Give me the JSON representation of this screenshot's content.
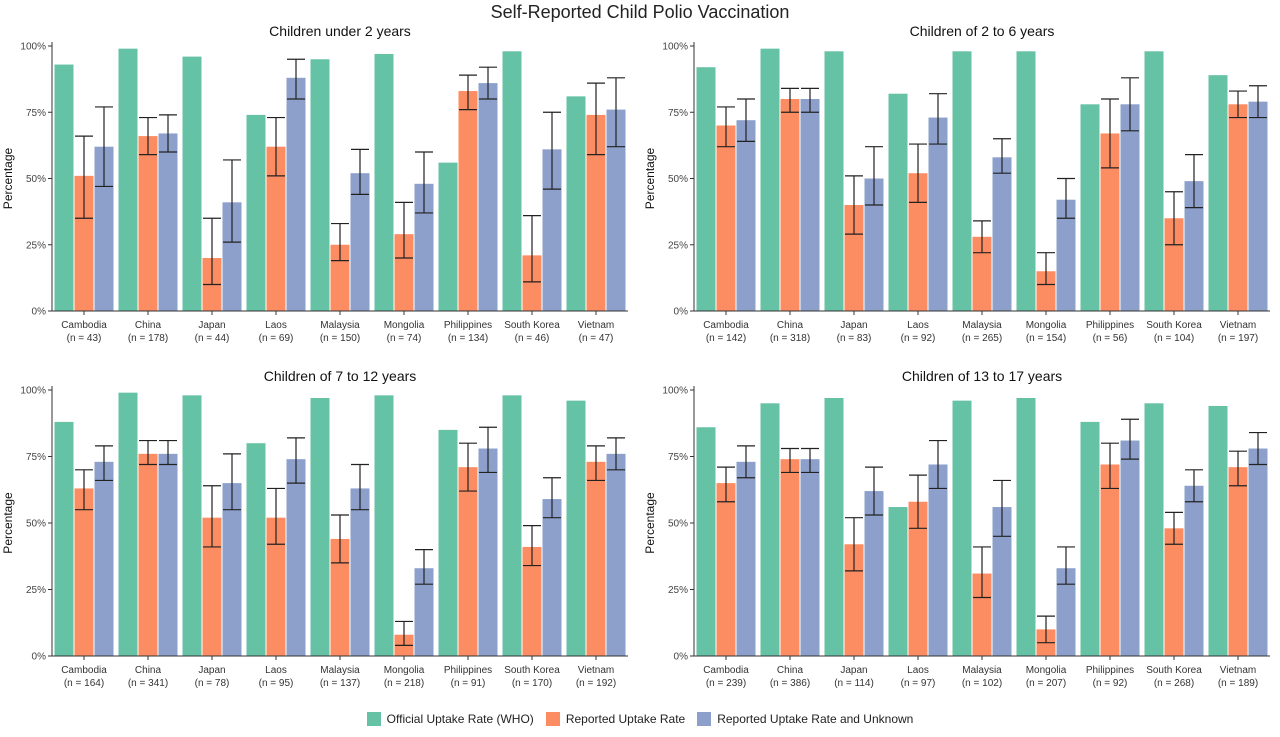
{
  "page_title": "Self-Reported Child Polio Vaccination",
  "colors": {
    "official": "#66c2a5",
    "reported": "#fc8d62",
    "reported_unknown": "#8da0cb",
    "axis": "#333333",
    "error_bar": "#222222"
  },
  "legend": [
    {
      "label": "Official Uptake Rate (WHO)",
      "color": "#66c2a5"
    },
    {
      "label": "Reported Uptake Rate",
      "color": "#fc8d62"
    },
    {
      "label": "Reported Uptake Rate and Unknown",
      "color": "#8da0cb"
    }
  ],
  "chart_data": [
    {
      "type": "bar",
      "title": "Children under 2 years",
      "ylabel": "Percentage",
      "ylim": [
        0,
        100
      ],
      "yticks": [
        "0%",
        "25%",
        "50%",
        "75%",
        "100%"
      ],
      "categories": [
        "Cambodia",
        "China",
        "Japan",
        "Laos",
        "Malaysia",
        "Mongolia",
        "Philippines",
        "South Korea",
        "Vietnam"
      ],
      "category_n": [
        "(n = 43)",
        "(n = 178)",
        "(n = 44)",
        "(n = 69)",
        "(n = 150)",
        "(n = 74)",
        "(n = 134)",
        "(n = 46)",
        "(n = 47)"
      ],
      "series": [
        {
          "name": "Official Uptake Rate (WHO)",
          "values": [
            93,
            99,
            96,
            74,
            95,
            97,
            56,
            98,
            81
          ]
        },
        {
          "name": "Reported Uptake Rate",
          "values": [
            51,
            66,
            20,
            62,
            25,
            29,
            83,
            21,
            74
          ],
          "error": [
            [
              35,
              66
            ],
            [
              59,
              73
            ],
            [
              10,
              35
            ],
            [
              51,
              73
            ],
            [
              19,
              33
            ],
            [
              20,
              41
            ],
            [
              76,
              89
            ],
            [
              11,
              36
            ],
            [
              59,
              86
            ]
          ]
        },
        {
          "name": "Reported Uptake Rate and Unknown",
          "values": [
            62,
            67,
            41,
            88,
            52,
            48,
            86,
            61,
            76
          ],
          "error": [
            [
              47,
              77
            ],
            [
              60,
              74
            ],
            [
              26,
              57
            ],
            [
              80,
              95
            ],
            [
              44,
              61
            ],
            [
              37,
              60
            ],
            [
              80,
              92
            ],
            [
              46,
              75
            ],
            [
              62,
              88
            ]
          ]
        }
      ]
    },
    {
      "type": "bar",
      "title": "Children of 2 to 6 years",
      "ylabel": "Percentage",
      "ylim": [
        0,
        100
      ],
      "yticks": [
        "0%",
        "25%",
        "50%",
        "75%",
        "100%"
      ],
      "categories": [
        "Cambodia",
        "China",
        "Japan",
        "Laos",
        "Malaysia",
        "Mongolia",
        "Philippines",
        "South Korea",
        "Vietnam"
      ],
      "category_n": [
        "(n = 142)",
        "(n = 318)",
        "(n = 83)",
        "(n = 92)",
        "(n = 265)",
        "(n = 154)",
        "(n = 56)",
        "(n = 104)",
        "(n = 197)"
      ],
      "series": [
        {
          "name": "Official Uptake Rate (WHO)",
          "values": [
            92,
            99,
            98,
            82,
            98,
            98,
            78,
            98,
            89
          ]
        },
        {
          "name": "Reported Uptake Rate",
          "values": [
            70,
            80,
            40,
            52,
            28,
            15,
            67,
            35,
            78
          ],
          "error": [
            [
              62,
              77
            ],
            [
              75,
              84
            ],
            [
              29,
              51
            ],
            [
              41,
              63
            ],
            [
              22,
              34
            ],
            [
              10,
              22
            ],
            [
              54,
              80
            ],
            [
              25,
              45
            ],
            [
              73,
              83
            ]
          ]
        },
        {
          "name": "Reported Uptake Rate and Unknown",
          "values": [
            72,
            80,
            50,
            73,
            58,
            42,
            78,
            49,
            79
          ],
          "error": [
            [
              64,
              80
            ],
            [
              75,
              84
            ],
            [
              40,
              62
            ],
            [
              63,
              82
            ],
            [
              52,
              65
            ],
            [
              35,
              50
            ],
            [
              68,
              88
            ],
            [
              39,
              59
            ],
            [
              73,
              85
            ]
          ]
        }
      ]
    },
    {
      "type": "bar",
      "title": "Children of 7 to 12 years",
      "ylabel": "Percentage",
      "ylim": [
        0,
        100
      ],
      "yticks": [
        "0%",
        "25%",
        "50%",
        "75%",
        "100%"
      ],
      "categories": [
        "Cambodia",
        "China",
        "Japan",
        "Laos",
        "Malaysia",
        "Mongolia",
        "Philippines",
        "South Korea",
        "Vietnam"
      ],
      "category_n": [
        "(n = 164)",
        "(n = 341)",
        "(n = 78)",
        "(n = 95)",
        "(n = 137)",
        "(n = 218)",
        "(n = 91)",
        "(n = 170)",
        "(n = 192)"
      ],
      "series": [
        {
          "name": "Official Uptake Rate (WHO)",
          "values": [
            88,
            99,
            98,
            80,
            97,
            98,
            85,
            98,
            96
          ]
        },
        {
          "name": "Reported Uptake Rate",
          "values": [
            63,
            76,
            52,
            52,
            44,
            8,
            71,
            41,
            73
          ],
          "error": [
            [
              55,
              70
            ],
            [
              72,
              81
            ],
            [
              41,
              64
            ],
            [
              42,
              63
            ],
            [
              35,
              53
            ],
            [
              4,
              13
            ],
            [
              62,
              80
            ],
            [
              34,
              49
            ],
            [
              66,
              79
            ]
          ]
        },
        {
          "name": "Reported Uptake Rate and Unknown",
          "values": [
            73,
            76,
            65,
            74,
            63,
            33,
            78,
            59,
            76
          ],
          "error": [
            [
              66,
              79
            ],
            [
              72,
              81
            ],
            [
              55,
              76
            ],
            [
              65,
              82
            ],
            [
              55,
              72
            ],
            [
              27,
              40
            ],
            [
              69,
              86
            ],
            [
              52,
              67
            ],
            [
              70,
              82
            ]
          ]
        }
      ]
    },
    {
      "type": "bar",
      "title": "Children of 13 to 17 years",
      "ylabel": "Percentage",
      "ylim": [
        0,
        100
      ],
      "yticks": [
        "0%",
        "25%",
        "50%",
        "75%",
        "100%"
      ],
      "categories": [
        "Cambodia",
        "China",
        "Japan",
        "Laos",
        "Malaysia",
        "Mongolia",
        "Philippines",
        "South Korea",
        "Vietnam"
      ],
      "category_n": [
        "(n = 239)",
        "(n = 386)",
        "(n = 114)",
        "(n = 97)",
        "(n = 102)",
        "(n = 207)",
        "(n = 92)",
        "(n = 268)",
        "(n = 189)"
      ],
      "series": [
        {
          "name": "Official Uptake Rate (WHO)",
          "values": [
            86,
            95,
            97,
            56,
            96,
            97,
            88,
            95,
            94
          ]
        },
        {
          "name": "Reported Uptake Rate",
          "values": [
            65,
            74,
            42,
            58,
            31,
            10,
            72,
            48,
            71
          ],
          "error": [
            [
              58,
              71
            ],
            [
              69,
              78
            ],
            [
              32,
              52
            ],
            [
              48,
              68
            ],
            [
              22,
              41
            ],
            [
              5,
              15
            ],
            [
              63,
              80
            ],
            [
              42,
              54
            ],
            [
              64,
              77
            ]
          ]
        },
        {
          "name": "Reported Uptake Rate and Unknown",
          "values": [
            73,
            74,
            62,
            72,
            56,
            33,
            81,
            64,
            78
          ],
          "error": [
            [
              67,
              79
            ],
            [
              69,
              78
            ],
            [
              53,
              71
            ],
            [
              63,
              81
            ],
            [
              45,
              66
            ],
            [
              27,
              41
            ],
            [
              74,
              89
            ],
            [
              58,
              70
            ],
            [
              72,
              84
            ]
          ]
        }
      ]
    }
  ]
}
